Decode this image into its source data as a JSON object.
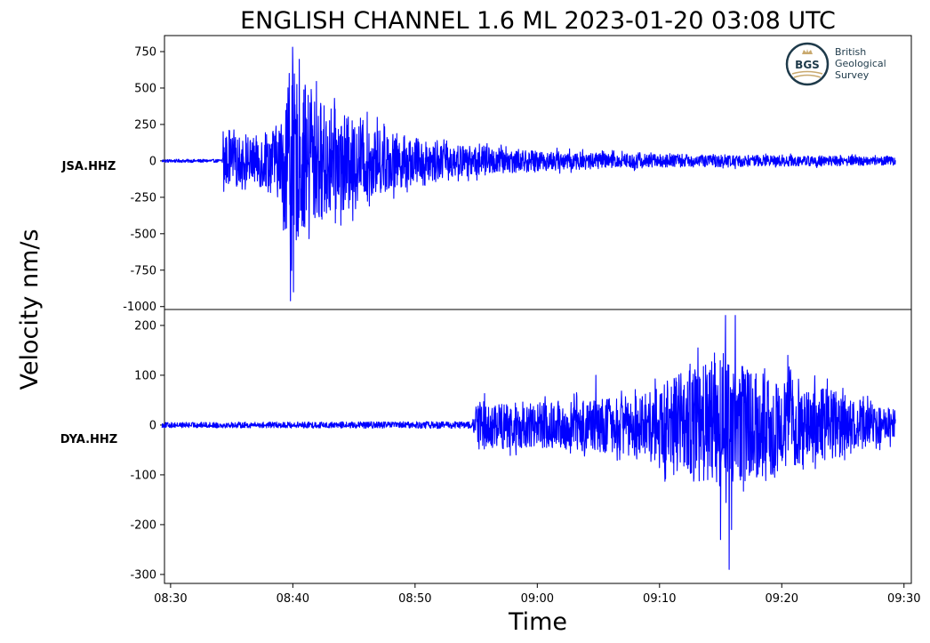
{
  "title": "ENGLISH CHANNEL 1.6 ML   2023-01-20 03:08 UTC",
  "logo": {
    "abbrev": "BGS",
    "lines": [
      "British",
      "Geological",
      "Survey"
    ]
  },
  "chart_data": {
    "type": "line",
    "title": "ENGLISH CHANNEL 1.6 ML   2023-01-20 03:08 UTC",
    "xlabel": "Time",
    "ylabel": "Velocity nm/s",
    "grid": false,
    "series_color": "#0000ff",
    "x_ticks": [
      "08:30",
      "08:40",
      "08:50",
      "09:00",
      "09:10",
      "09:20",
      "09:30"
    ],
    "x_tick_minutes": [
      0,
      10,
      20,
      30,
      40,
      50,
      60
    ],
    "xlim_minutes": [
      -0.5,
      60.6
    ],
    "data_start_minute": -0.7,
    "data_end_minute": 59.3,
    "panels": [
      {
        "station": "JSA.HHZ",
        "ylim": [
          -1020,
          860
        ],
        "y_ticks": [
          750,
          500,
          250,
          0,
          -250,
          -500,
          -750,
          -1000
        ],
        "y_tick_labels": [
          "750",
          "500",
          "250",
          "0",
          "-250",
          "-500",
          "-750",
          "-1000"
        ],
        "p_arrival_minute": 4.3,
        "envelope": [
          {
            "minute": -0.7,
            "amp": 12
          },
          {
            "minute": 4.2,
            "amp": 12
          },
          {
            "minute": 4.4,
            "amp": 180
          },
          {
            "minute": 6.5,
            "amp": 150
          },
          {
            "minute": 9.0,
            "amp": 260
          },
          {
            "minute": 9.8,
            "amp": 700
          },
          {
            "minute": 10.5,
            "amp": 520
          },
          {
            "minute": 12.0,
            "amp": 430
          },
          {
            "minute": 15.0,
            "amp": 280
          },
          {
            "minute": 18.0,
            "amp": 200
          },
          {
            "minute": 22.0,
            "amp": 120
          },
          {
            "minute": 30.0,
            "amp": 70
          },
          {
            "minute": 40.0,
            "amp": 45
          },
          {
            "minute": 59.3,
            "amp": 30
          }
        ],
        "peaks": [
          {
            "minute": 9.97,
            "value": 780
          },
          {
            "minute": 9.7,
            "value": 600
          },
          {
            "minute": 9.8,
            "value": -960
          },
          {
            "minute": 10.05,
            "value": -900
          },
          {
            "minute": 11.0,
            "value": 520
          },
          {
            "minute": 11.5,
            "value": 490
          },
          {
            "minute": 14.9,
            "value": -410
          },
          {
            "minute": 4.3,
            "value": 200
          },
          {
            "minute": 4.35,
            "value": -210
          }
        ]
      },
      {
        "station": "DYA.HHZ",
        "ylim": [
          -318,
          232
        ],
        "y_ticks": [
          200,
          100,
          0,
          -100,
          -200,
          -300
        ],
        "y_tick_labels": [
          "200",
          "100",
          "0",
          "-100",
          "-200",
          "-300"
        ],
        "p_arrival_minute": 24.8,
        "envelope": [
          {
            "minute": -0.7,
            "amp": 6
          },
          {
            "minute": 24.7,
            "amp": 8
          },
          {
            "minute": 25.0,
            "amp": 50
          },
          {
            "minute": 30.0,
            "amp": 45
          },
          {
            "minute": 35.0,
            "amp": 55
          },
          {
            "minute": 39.0,
            "amp": 65
          },
          {
            "minute": 42.0,
            "amp": 110
          },
          {
            "minute": 45.0,
            "amp": 130
          },
          {
            "minute": 47.0,
            "amp": 120
          },
          {
            "minute": 50.0,
            "amp": 90
          },
          {
            "minute": 54.0,
            "amp": 70
          },
          {
            "minute": 59.3,
            "amp": 30
          }
        ],
        "peaks": [
          {
            "minute": 45.4,
            "value": 220
          },
          {
            "minute": 46.2,
            "value": 220
          },
          {
            "minute": 45.7,
            "value": -290
          },
          {
            "minute": 45.0,
            "value": -230
          },
          {
            "minute": 45.9,
            "value": -210
          },
          {
            "minute": 50.5,
            "value": 140
          },
          {
            "minute": 34.8,
            "value": 100
          }
        ]
      }
    ]
  }
}
